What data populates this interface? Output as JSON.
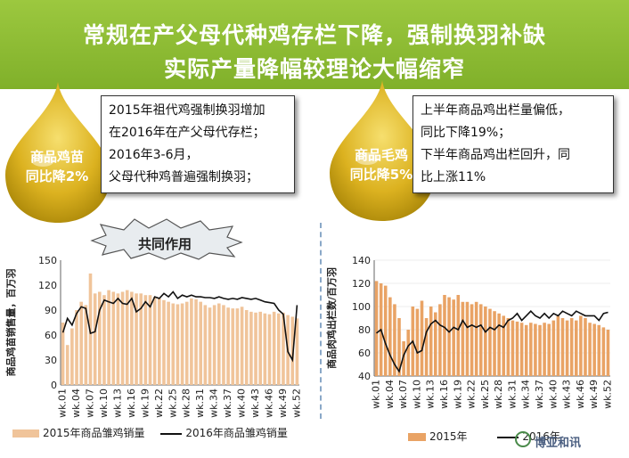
{
  "header": {
    "title_line1": "常规在产父母代种鸡存栏下降，强制换羽补缺",
    "title_line2": "实际产量降幅较理论大幅缩窄"
  },
  "left_callout": {
    "drop_line1": "商品鸡苗",
    "drop_line2": "同比降2%",
    "note_lines": [
      "2015年祖代鸡强制换羽增加",
      "在2016年在产父母代存栏；",
      "2016年3-6月，",
      "父母代种鸡普遍强制换羽；"
    ],
    "burst_label": "共同作用"
  },
  "right_callout": {
    "drop_line1": "商品毛鸡",
    "drop_line2": "同比降5%",
    "note_lines": [
      "上半年商品鸡出栏量偏低，",
      "同比下降19%；",
      "下半年商品鸡出栏回升，同",
      "比上涨11%"
    ]
  },
  "watermark": "博亚和讯",
  "colors": {
    "banner": "#8cbc34",
    "bar": "#f0c49a",
    "bar_right": "#e9a365",
    "line": "#111111",
    "drop": "#d9b21c"
  },
  "chart_data": [
    {
      "type": "bar",
      "ylabel": "商品鸡苗销售量，百万羽",
      "ylim": [
        0,
        150
      ],
      "yticks": [
        0,
        10,
        20,
        30,
        40,
        50,
        60,
        70,
        80,
        90,
        100,
        110,
        120,
        130,
        140,
        150
      ],
      "xtick_labels": [
        "wk.01",
        "wk.04",
        "wk.07",
        "wk.10",
        "wk.13",
        "wk.16",
        "wk.19",
        "wk.22",
        "wk.25",
        "wk.28",
        "wk.31",
        "wk.34",
        "wk.37",
        "wk.40",
        "wk.43",
        "wk.46",
        "wk.49",
        "wk.52"
      ],
      "series": [
        {
          "name": "2015年商品雏鸡销量",
          "type": "bar",
          "values": [
            75,
            48,
            68,
            90,
            100,
            96,
            134,
            110,
            112,
            108,
            114,
            112,
            110,
            112,
            114,
            112,
            110,
            110,
            108,
            108,
            106,
            104,
            102,
            100,
            98,
            97,
            98,
            100,
            104,
            103,
            100,
            96,
            93,
            96,
            98,
            96,
            93,
            92,
            92,
            94,
            90,
            88,
            87,
            88,
            86,
            85,
            88,
            86,
            87,
            84,
            82,
            80
          ]
        },
        {
          "name": "2016年商品雏鸡销量",
          "type": "line",
          "values": [
            63,
            80,
            72,
            86,
            94,
            92,
            62,
            64,
            90,
            102,
            100,
            98,
            104,
            98,
            97,
            104,
            88,
            92,
            100,
            94,
            106,
            104,
            110,
            106,
            112,
            104,
            108,
            106,
            108,
            106,
            106,
            105,
            105,
            104,
            106,
            104,
            103,
            104,
            103,
            105,
            104,
            103,
            104,
            102,
            100,
            99,
            98,
            90,
            85,
            40,
            30,
            96
          ]
        }
      ]
    },
    {
      "type": "bar",
      "ylabel": "商品肉鸡出栏数/百万羽",
      "ylim": [
        40,
        140
      ],
      "yticks": [
        40,
        60,
        80,
        100,
        120,
        140
      ],
      "xtick_labels": [
        "wk.01",
        "wk.04",
        "wk.07",
        "wk.10",
        "wk.13",
        "wk.16",
        "wk.19",
        "wk.22",
        "wk.25",
        "wk.28",
        "wk.31",
        "wk.34",
        "wk.37",
        "wk.40",
        "wk.43",
        "wk.46",
        "wk.49",
        "wk.52"
      ],
      "series": [
        {
          "name": "2015年",
          "type": "bar",
          "values": [
            122,
            120,
            118,
            108,
            102,
            90,
            70,
            80,
            100,
            98,
            105,
            90,
            100,
            95,
            102,
            110,
            108,
            106,
            110,
            104,
            104,
            102,
            104,
            102,
            100,
            98,
            96,
            94,
            92,
            90,
            88,
            87,
            86,
            84,
            86,
            85,
            84,
            86,
            85,
            88,
            92,
            90,
            88,
            90,
            88,
            92,
            90,
            86,
            85,
            84,
            82,
            80
          ]
        },
        {
          "name": "2016年",
          "type": "line",
          "values": [
            77,
            80,
            68,
            58,
            50,
            44,
            58,
            66,
            70,
            60,
            62,
            78,
            85,
            88,
            84,
            82,
            78,
            82,
            80,
            88,
            82,
            84,
            82,
            84,
            78,
            82,
            80,
            84,
            82,
            88,
            90,
            94,
            88,
            92,
            96,
            92,
            90,
            94,
            90,
            94,
            92,
            96,
            94,
            92,
            96,
            94,
            92,
            92,
            92,
            88,
            94,
            95
          ]
        }
      ]
    }
  ]
}
